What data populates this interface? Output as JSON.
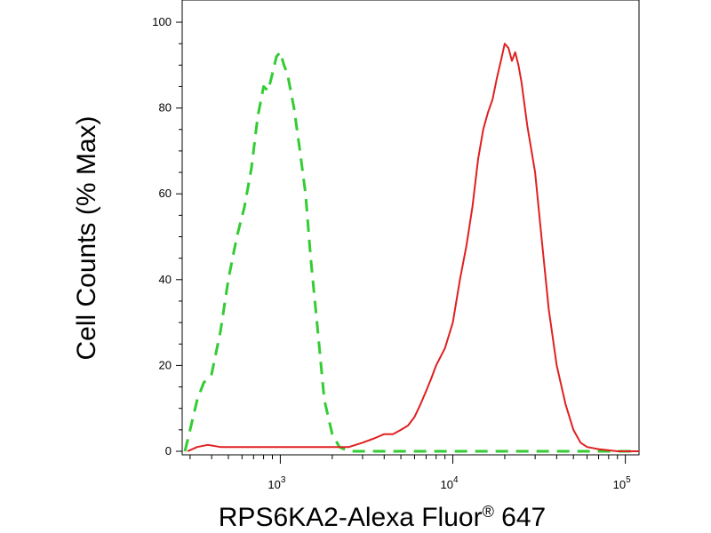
{
  "chart_data": {
    "type": "line",
    "xlabel": "RPS6KA2-Alexa Fluor",
    "xlabel_mark": "®",
    "xlabel_suffix": " 647",
    "ylabel": "Cell Counts (% Max)",
    "x_scale": "log",
    "xlim": [
      270,
      120000
    ],
    "ylim": [
      0,
      100
    ],
    "x_ticks": [
      {
        "value": 1000,
        "base": "10",
        "exp": "3"
      },
      {
        "value": 10000,
        "base": "10",
        "exp": "4"
      },
      {
        "value": 100000,
        "base": "10",
        "exp": "5"
      }
    ],
    "y_ticks": [
      0,
      20,
      40,
      60,
      80,
      100
    ],
    "grid": false,
    "series": [
      {
        "color": "#33cc33",
        "style": "dashed",
        "points": [
          [
            280,
            0
          ],
          [
            300,
            5
          ],
          [
            330,
            12
          ],
          [
            360,
            16
          ],
          [
            400,
            18
          ],
          [
            450,
            28
          ],
          [
            500,
            40
          ],
          [
            560,
            50
          ],
          [
            620,
            57
          ],
          [
            680,
            66
          ],
          [
            740,
            78
          ],
          [
            800,
            85
          ],
          [
            850,
            84
          ],
          [
            900,
            88
          ],
          [
            950,
            92
          ],
          [
            1000,
            93
          ],
          [
            1050,
            90
          ],
          [
            1100,
            88
          ],
          [
            1200,
            80
          ],
          [
            1300,
            70
          ],
          [
            1400,
            60
          ],
          [
            1500,
            45
          ],
          [
            1650,
            28
          ],
          [
            1800,
            12
          ],
          [
            2000,
            4
          ],
          [
            2200,
            1
          ],
          [
            2500,
            0
          ],
          [
            3000,
            0
          ],
          [
            5000,
            0
          ],
          [
            10000,
            0
          ],
          [
            30000,
            0
          ],
          [
            60000,
            0
          ],
          [
            120000,
            0
          ]
        ]
      },
      {
        "color": "#e02020",
        "style": "solid",
        "points": [
          [
            290,
            0
          ],
          [
            330,
            1
          ],
          [
            380,
            1.5
          ],
          [
            450,
            1
          ],
          [
            600,
            1
          ],
          [
            800,
            1
          ],
          [
            1000,
            1
          ],
          [
            1500,
            1
          ],
          [
            2000,
            1
          ],
          [
            2500,
            1
          ],
          [
            3000,
            2
          ],
          [
            3500,
            3
          ],
          [
            4000,
            4
          ],
          [
            4500,
            4
          ],
          [
            5000,
            5
          ],
          [
            5500,
            6
          ],
          [
            6000,
            8
          ],
          [
            6500,
            11
          ],
          [
            7000,
            14
          ],
          [
            7500,
            17
          ],
          [
            8000,
            20
          ],
          [
            9000,
            24
          ],
          [
            10000,
            30
          ],
          [
            11000,
            40
          ],
          [
            12000,
            48
          ],
          [
            13000,
            57
          ],
          [
            14000,
            68
          ],
          [
            15000,
            75
          ],
          [
            16000,
            79
          ],
          [
            17000,
            82
          ],
          [
            18000,
            87
          ],
          [
            19000,
            91
          ],
          [
            20000,
            95
          ],
          [
            21000,
            94
          ],
          [
            22000,
            91
          ],
          [
            23000,
            93
          ],
          [
            24000,
            90
          ],
          [
            25000,
            86
          ],
          [
            27000,
            76
          ],
          [
            30000,
            65
          ],
          [
            33000,
            48
          ],
          [
            36000,
            33
          ],
          [
            40000,
            20
          ],
          [
            45000,
            11
          ],
          [
            50000,
            5
          ],
          [
            55000,
            2
          ],
          [
            60000,
            1
          ],
          [
            70000,
            0.5
          ],
          [
            90000,
            0
          ],
          [
            120000,
            0
          ]
        ]
      }
    ]
  }
}
